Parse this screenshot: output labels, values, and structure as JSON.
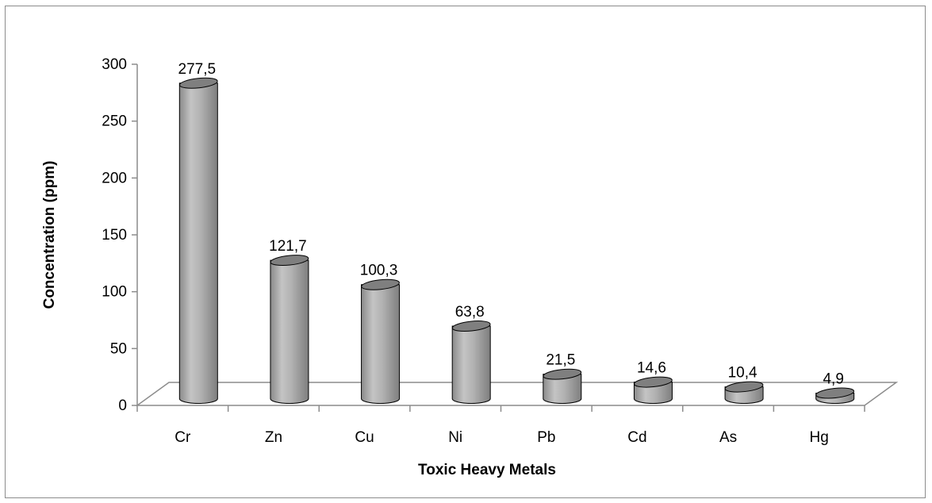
{
  "chart_data": {
    "type": "bar",
    "style": "3d-cylinder",
    "title": "",
    "xlabel": "Toxic Heavy Metals",
    "ylabel": "Concentration (ppm)",
    "ylim": [
      0,
      300
    ],
    "yticks": [
      0,
      50,
      100,
      150,
      200,
      250,
      300
    ],
    "categories": [
      "Cr",
      "Zn",
      "Cu",
      "Ni",
      "Pb",
      "Cd",
      "As",
      "Hg"
    ],
    "values": [
      277.5,
      121.7,
      100.3,
      63.8,
      21.5,
      14.6,
      10.4,
      4.9
    ],
    "data_labels": [
      "277,5",
      "121,7",
      "100,3",
      "63,8",
      "21,5",
      "14,6",
      "10,4",
      "4,9"
    ],
    "legend": "none",
    "grid": false,
    "colors": {
      "bar": "#a6a6a6",
      "bar_top": "#7f7f7f",
      "outline": "#000000",
      "axis": "#8c8c8c"
    }
  }
}
